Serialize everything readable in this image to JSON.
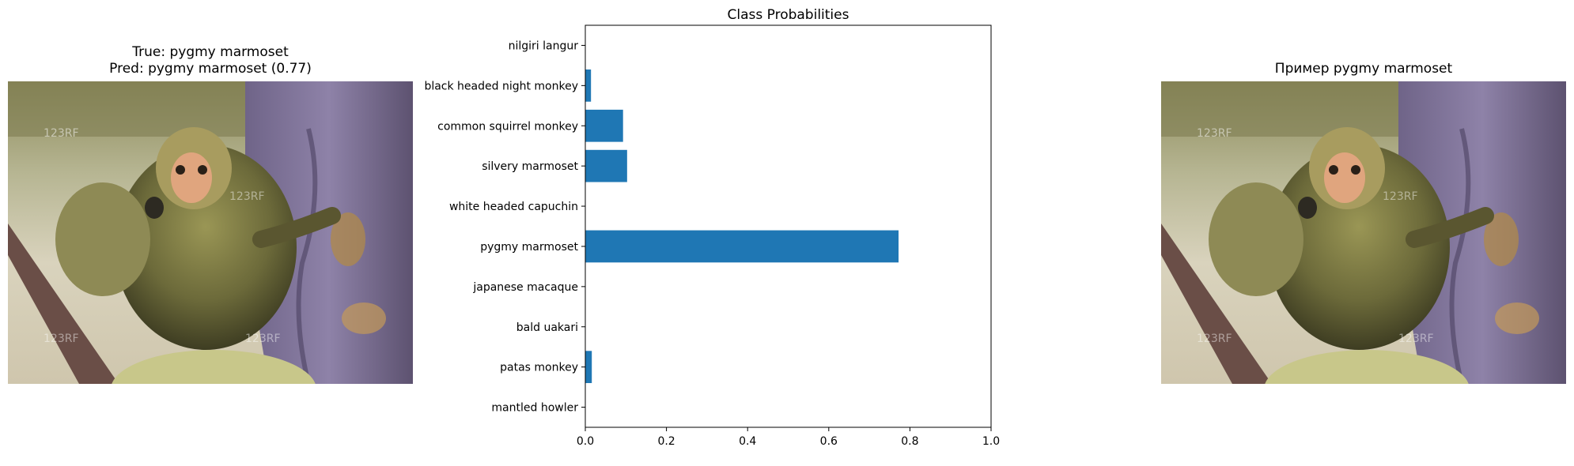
{
  "left_panel": {
    "title_line1": "True: pygmy marmoset",
    "title_line2": "Pred: pygmy marmoset (0.77)",
    "watermark": "123RF"
  },
  "right_panel": {
    "title": "Пример pygmy marmoset",
    "watermark": "123RF"
  },
  "chart_data": {
    "type": "bar",
    "orientation": "horizontal",
    "title": "Class Probabilities",
    "xlabel": "",
    "ylabel": "",
    "xlim": [
      0,
      1.0
    ],
    "xticks": [
      "0.0",
      "0.2",
      "0.4",
      "0.6",
      "0.8",
      "1.0"
    ],
    "categories": [
      "mantled howler",
      "patas monkey",
      "bald uakari",
      "japanese macaque",
      "pygmy marmoset",
      "white headed capuchin",
      "silvery marmoset",
      "common squirrel monkey",
      "black headed night monkey",
      "nilgiri langur"
    ],
    "values": [
      0.0,
      0.016,
      0.0,
      0.0,
      0.772,
      0.0,
      0.103,
      0.093,
      0.014,
      0.0
    ],
    "bar_color": "#1f77b4",
    "grid": false
  }
}
